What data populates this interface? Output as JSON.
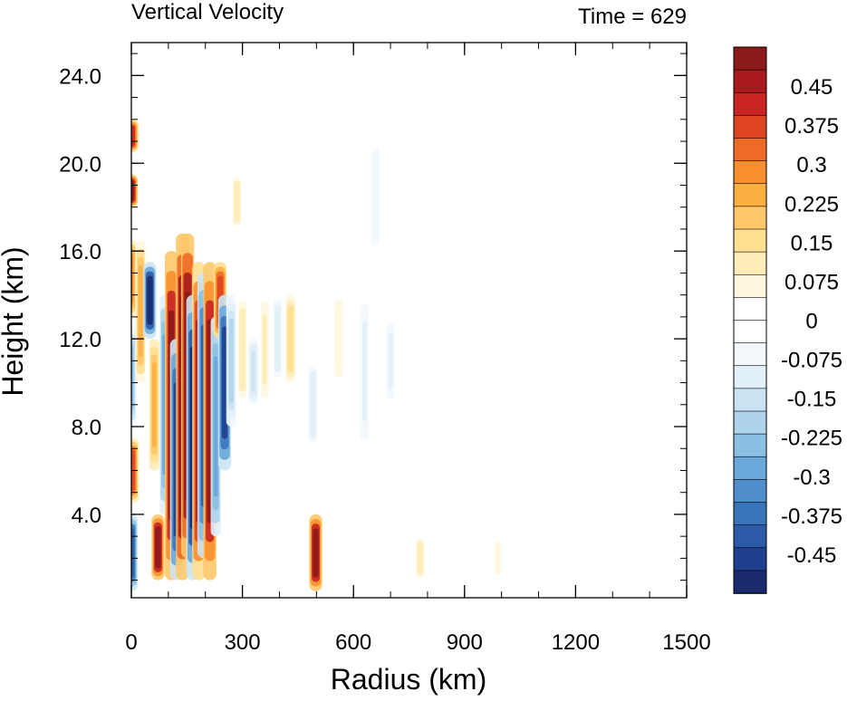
{
  "chart_data": {
    "type": "heatmap",
    "title_left": "Vertical Velocity",
    "title_right": "Time = 629",
    "xlabel": "Radius (km)",
    "ylabel": "Height (km)",
    "xlim": [
      0,
      1500
    ],
    "ylim": [
      0.2,
      25.5
    ],
    "xticks": [
      0,
      300,
      600,
      900,
      1200,
      1500
    ],
    "xtick_labels": [
      "0",
      "300",
      "600",
      "900",
      "1200",
      "1500"
    ],
    "yticks": [
      4,
      8,
      12,
      16,
      20,
      24
    ],
    "ytick_labels": [
      "4.0",
      "8.0",
      "12.0",
      "16.0",
      "20.0",
      "24.0"
    ],
    "colorbar": {
      "levels_min": -0.525,
      "levels_max": 0.525,
      "step": 0.025,
      "labels": [
        "0.45",
        "0.375",
        "0.3",
        "0.225",
        "0.15",
        "0.075",
        "0",
        "-0.075",
        "-0.15",
        "-0.225",
        "-0.3",
        "-0.375",
        "-0.45"
      ],
      "label_values": [
        0.45,
        0.375,
        0.3,
        0.225,
        0.15,
        0.075,
        0,
        -0.075,
        -0.15,
        -0.225,
        -0.3,
        -0.375,
        -0.45
      ],
      "colors": [
        "#1a2a6c",
        "#1f3f8f",
        "#2b5aa8",
        "#3a75ba",
        "#4f8fcb",
        "#6aa9d9",
        "#8cc0e3",
        "#aed4ec",
        "#cbe4f3",
        "#e2f0f9",
        "#f2f8fc",
        "#ffffff",
        "#ffffff",
        "#fff7e0",
        "#ffecb8",
        "#ffdf90",
        "#fec868",
        "#fdb042",
        "#f8902e",
        "#ee6a26",
        "#de4424",
        "#c92322",
        "#a81a1e",
        "#8b1a1a"
      ]
    },
    "field_features": [
      {
        "r": 0,
        "z0": 0.5,
        "z1": 4,
        "w": -0.42
      },
      {
        "r": 3,
        "z0": 4.5,
        "z1": 7.5,
        "w": 0.36
      },
      {
        "r": 0,
        "z0": 8,
        "z1": 12.5,
        "w": -0.25
      },
      {
        "r": 0,
        "z0": 13,
        "z1": 16.5,
        "w": 0.3
      },
      {
        "r": 0,
        "z0": 18,
        "z1": 19.5,
        "w": 0.5
      },
      {
        "r": 2,
        "z0": 20.5,
        "z1": 22,
        "w": 0.4
      },
      {
        "r": 25,
        "z0": 10,
        "z1": 16.5,
        "w": 0.22
      },
      {
        "r": 50,
        "z0": 12,
        "z1": 15.5,
        "w": -0.5
      },
      {
        "r": 62,
        "z0": 6,
        "z1": 12,
        "w": 0.25
      },
      {
        "r": 72,
        "z0": 1,
        "z1": 4,
        "w": 0.5
      },
      {
        "r": 90,
        "z0": 4,
        "z1": 14,
        "w": -0.3
      },
      {
        "r": 108,
        "z0": 1,
        "z1": 16,
        "w": 0.5
      },
      {
        "r": 122,
        "z0": 1,
        "z1": 12,
        "w": -0.45
      },
      {
        "r": 138,
        "z0": 1,
        "z1": 16.8,
        "w": 0.52
      },
      {
        "r": 152,
        "z0": 2,
        "z1": 16.8,
        "w": 0.52
      },
      {
        "r": 166,
        "z0": 1,
        "z1": 14,
        "w": -0.5
      },
      {
        "r": 182,
        "z0": 1,
        "z1": 15.5,
        "w": 0.45
      },
      {
        "r": 196,
        "z0": 2,
        "z1": 15,
        "w": -0.4
      },
      {
        "r": 212,
        "z0": 1,
        "z1": 15.5,
        "w": 0.5
      },
      {
        "r": 228,
        "z0": 3,
        "z1": 13,
        "w": -0.3
      },
      {
        "r": 240,
        "z0": 12,
        "z1": 15.5,
        "w": 0.38
      },
      {
        "r": 252,
        "z0": 6,
        "z1": 14,
        "w": -0.45
      },
      {
        "r": 270,
        "z0": 8,
        "z1": 14,
        "w": -0.18
      },
      {
        "r": 300,
        "z0": 9,
        "z1": 14,
        "w": 0.12
      },
      {
        "r": 330,
        "z0": 9,
        "z1": 12,
        "w": -0.15
      },
      {
        "r": 360,
        "z0": 9,
        "z1": 14,
        "w": 0.1
      },
      {
        "r": 395,
        "z0": 10,
        "z1": 14,
        "w": -0.12
      },
      {
        "r": 430,
        "z0": 10,
        "z1": 14,
        "w": 0.16
      },
      {
        "r": 490,
        "z0": 7,
        "z1": 11,
        "w": -0.12
      },
      {
        "r": 498,
        "z0": 0.5,
        "z1": 4,
        "w": 0.5
      },
      {
        "r": 560,
        "z0": 10,
        "z1": 14,
        "w": 0.08
      },
      {
        "r": 630,
        "z0": 7,
        "z1": 14,
        "w": -0.1
      },
      {
        "r": 700,
        "z0": 9,
        "z1": 13,
        "w": -0.1
      },
      {
        "r": 780,
        "z0": 1,
        "z1": 3,
        "w": 0.12
      },
      {
        "r": 660,
        "z0": 16,
        "z1": 21,
        "w": -0.08
      },
      {
        "r": 285,
        "z0": 17,
        "z1": 19.5,
        "w": 0.12
      },
      {
        "r": 990,
        "z0": 1,
        "z1": 3,
        "w": 0.06
      }
    ]
  }
}
